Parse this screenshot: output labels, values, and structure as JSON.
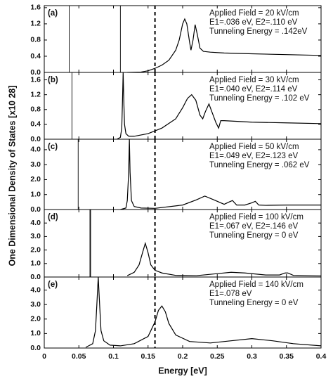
{
  "chart_data": [
    {
      "type": "line",
      "label": "(a)",
      "annotations": [
        "Applied Field = 20 kV/cm",
        "E1=.036 eV, E2=.110 eV",
        "Tunneling Energy = .142eV"
      ],
      "x": [
        0.12,
        0.14,
        0.15,
        0.16,
        0.17,
        0.18,
        0.19,
        0.195,
        0.2,
        0.203,
        0.206,
        0.21,
        0.212,
        0.215,
        0.218,
        0.221,
        0.225,
        0.23,
        0.24,
        0.26,
        0.3,
        0.35,
        0.4
      ],
      "values": [
        0,
        0.01,
        0.04,
        0.1,
        0.18,
        0.3,
        0.55,
        0.8,
        1.2,
        1.32,
        1.2,
        0.75,
        0.55,
        0.8,
        1.18,
        0.95,
        0.6,
        0.52,
        0.5,
        0.48,
        0.46,
        0.44,
        0.42
      ],
      "color": "#000000",
      "vlines": [
        0.036,
        0.11
      ],
      "dashed_x": 0.16,
      "ylim": [
        0,
        1.65
      ],
      "yticks": [
        {
          "value": 0,
          "label": "0.0"
        },
        {
          "value": 0.4,
          "label": "0.4"
        },
        {
          "value": 0.8,
          "label": "0.8"
        },
        {
          "value": 1.2,
          "label": "1.2"
        },
        {
          "value": 1.6,
          "label": "1.6"
        }
      ]
    },
    {
      "type": "line",
      "label": "(b)",
      "annotations": [
        "Applied Field = 30 kV/cm",
        "E1=.040 eV, E2=.114 eV",
        "Tunneling Energy = .102 eV"
      ],
      "x": [
        0.105,
        0.11,
        0.112,
        0.113,
        0.114,
        0.115,
        0.116,
        0.118,
        0.122,
        0.13,
        0.15,
        0.17,
        0.19,
        0.2,
        0.207,
        0.213,
        0.219,
        0.225,
        0.229,
        0.233,
        0.238,
        0.243,
        0.248,
        0.252,
        0.255,
        0.26,
        0.3,
        0.35,
        0.4
      ],
      "values": [
        0,
        0.05,
        0.3,
        1.0,
        1.8,
        1.0,
        0.4,
        0.15,
        0.08,
        0.08,
        0.15,
        0.3,
        0.55,
        0.85,
        1.1,
        1.2,
        1.05,
        0.65,
        0.55,
        0.75,
        0.95,
        0.7,
        0.45,
        0.3,
        0.5,
        0.5,
        0.46,
        0.44,
        0.42
      ],
      "color": "#000000",
      "vlines": [
        0.04
      ],
      "dashed_x": 0.16,
      "ylim": [
        0,
        1.8
      ],
      "yticks": [
        {
          "value": 0,
          "label": "0.0"
        },
        {
          "value": 0.4,
          "label": "0.4"
        },
        {
          "value": 0.8,
          "label": "0.8"
        },
        {
          "value": 1.2,
          "label": "1.2"
        },
        {
          "value": 1.6,
          "label": "1.6"
        }
      ]
    },
    {
      "type": "line",
      "label": "(c)",
      "ylabel": "One Dimensional Density of States [x10 28]",
      "annotations": [
        "Applied Field = 50 kV/cm",
        "E1=.049 eV, E2=.123 eV",
        "Tunneling Energy = .062 eV"
      ],
      "x": [
        0.11,
        0.118,
        0.12,
        0.122,
        0.123,
        0.124,
        0.126,
        0.13,
        0.14,
        0.16,
        0.2,
        0.22,
        0.232,
        0.245,
        0.26,
        0.267,
        0.272,
        0.278,
        0.29,
        0.3,
        0.305,
        0.31,
        0.32,
        0.35,
        0.4
      ],
      "values": [
        0,
        0.1,
        0.6,
        2.5,
        4.7,
        2.5,
        0.6,
        0.2,
        0.1,
        0.08,
        0.3,
        0.65,
        0.9,
        0.65,
        0.35,
        0.5,
        0.6,
        0.3,
        0.3,
        0.45,
        0.55,
        0.3,
        0.28,
        0.3,
        0.3
      ],
      "color": "#000000",
      "vlines": [
        0.049
      ],
      "dashed_x": 0.16,
      "ylim": [
        0,
        4.7
      ],
      "yticks": [
        {
          "value": 0,
          "label": "0.0"
        },
        {
          "value": 1,
          "label": "1.0"
        },
        {
          "value": 2,
          "label": "2.0"
        },
        {
          "value": 3,
          "label": "3.0"
        },
        {
          "value": 4,
          "label": "4.0"
        }
      ]
    },
    {
      "type": "line",
      "label": "(d)",
      "annotations": [
        "Applied Field = 100 kV/cm",
        "E1=.067 eV, E2=.146 eV",
        "Tunneling Energy = 0 eV"
      ],
      "x": [
        0.12,
        0.13,
        0.137,
        0.142,
        0.146,
        0.15,
        0.154,
        0.16,
        0.17,
        0.19,
        0.22,
        0.25,
        0.27,
        0.29,
        0.32,
        0.34,
        0.348,
        0.352,
        0.36,
        0.4
      ],
      "values": [
        0.1,
        0.35,
        0.9,
        1.8,
        2.5,
        1.8,
        0.9,
        0.5,
        0.3,
        0.12,
        0.1,
        0.25,
        0.35,
        0.3,
        0.15,
        0.15,
        0.3,
        0.3,
        0.12,
        0.08
      ],
      "color": "#000000",
      "vlines": [
        0.066,
        0.067
      ],
      "dashed_x": 0.16,
      "ylim": [
        0,
        5
      ],
      "yticks": [
        {
          "value": 0,
          "label": "0.0"
        },
        {
          "value": 1,
          "label": "1.0"
        },
        {
          "value": 2,
          "label": "2.0"
        },
        {
          "value": 3,
          "label": "3.0"
        },
        {
          "value": 4,
          "label": "4.0"
        }
      ]
    },
    {
      "type": "line",
      "label": "(e)",
      "xlabel": "Energy [eV]",
      "annotations": [
        "Applied Field = 140 kV/cm",
        "E1=.078 eV",
        "Tunneling Energy = 0 eV"
      ],
      "x": [
        0.06,
        0.07,
        0.074,
        0.076,
        0.078,
        0.08,
        0.082,
        0.086,
        0.095,
        0.11,
        0.13,
        0.15,
        0.16,
        0.165,
        0.17,
        0.175,
        0.18,
        0.19,
        0.21,
        0.24,
        0.27,
        0.3,
        0.33,
        0.36,
        0.4
      ],
      "values": [
        0.05,
        0.3,
        1.2,
        3.0,
        4.9,
        3.0,
        1.2,
        0.5,
        0.2,
        0.15,
        0.3,
        0.8,
        1.8,
        2.6,
        2.9,
        2.5,
        1.7,
        0.9,
        0.45,
        0.35,
        0.5,
        0.65,
        0.5,
        0.3,
        0.15
      ],
      "color": "#000000",
      "vlines": [],
      "dashed_x": 0.16,
      "ylim": [
        0,
        4.9
      ],
      "yticks": [
        {
          "value": 0,
          "label": "0.0"
        },
        {
          "value": 1,
          "label": "1.0"
        },
        {
          "value": 2,
          "label": "2.0"
        },
        {
          "value": 3,
          "label": "3.0"
        },
        {
          "value": 4,
          "label": "4.0"
        }
      ],
      "xlim": [
        0,
        0.4
      ],
      "xticks": [
        0,
        0.05,
        0.1,
        0.15,
        0.2,
        0.25,
        0.3,
        0.35,
        0.4
      ]
    }
  ]
}
